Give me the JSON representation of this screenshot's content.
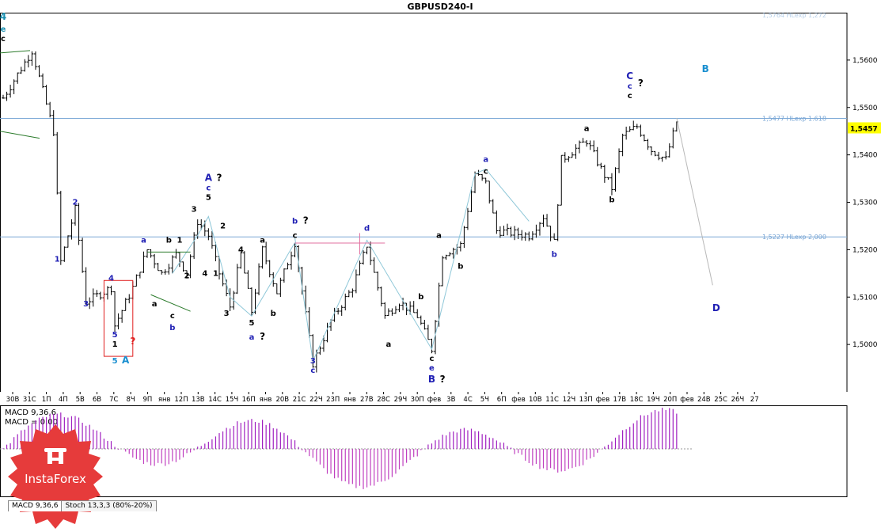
{
  "window": {
    "title": "GBPUSD240-I",
    "tabs": [
      "MACD 9,36,6",
      "Stoch 13,3,3 (80%-20%)"
    ]
  },
  "brand": {
    "name": "InstaForex",
    "color": "#e63b3b"
  },
  "colors": {
    "bull": "#ffffff",
    "bar": "#000000",
    "level_line": "#7aa7d6",
    "wave_blue": "#1f1fb4",
    "wave_cyan": "#1a8fd0",
    "wave_teal": "#1a8fb0",
    "macd_pos": "#a020c0",
    "macd_neg": "#c040c0",
    "price_tag": "#ffff00"
  },
  "chart_data": [
    {
      "type": "candlestick",
      "title": "GBPUSD240-I",
      "ylim": [
        1.49,
        1.57
      ],
      "y_ticks": [
        "1,5600",
        "1,5500",
        "1,5400",
        "1,5300",
        "1,5200",
        "1,5100",
        "1,5000"
      ],
      "y_tick_values": [
        1.56,
        1.55,
        1.54,
        1.53,
        1.52,
        1.51,
        1.5
      ],
      "current_price": {
        "value": 1.5457,
        "label": "1,5457"
      },
      "x_ticks": [
        "30В",
        "31С",
        "1П",
        "4П",
        "5В",
        "6В",
        "7С",
        "8Ч",
        "9П",
        "янв",
        "12П",
        "13В",
        "14С",
        "15Ч",
        "16П",
        "янв",
        "20В",
        "21С",
        "22Ч",
        "23П",
        "янв",
        "27В",
        "28С",
        "29Ч",
        "30П",
        "фев",
        "3В",
        "4С",
        "5Ч",
        "6П",
        "фев",
        "10В",
        "11С",
        "12Ч",
        "13П",
        "фев",
        "17В",
        "18С",
        "19Ч",
        "20П",
        "фев",
        "24В",
        "25С",
        "26Ч",
        "27"
      ],
      "levels": [
        {
          "value": 1.5764,
          "label": "1,5764 HLexp 1,272"
        },
        {
          "value": 1.5477,
          "label": "1,5477 HLexp 1.618"
        },
        {
          "value": 1.5227,
          "label": "1,5227 HLexp 2,000"
        }
      ],
      "wave_labels": [
        {
          "text": "4",
          "x": 0,
          "y": 1.5685,
          "color": "#1a8fb0"
        },
        {
          "text": "e",
          "x": 0,
          "y": 1.566,
          "color": "#1a8fb0"
        },
        {
          "text": "c",
          "x": 0,
          "y": 1.564,
          "color": "#000000"
        },
        {
          "text": "b",
          "x": -6,
          "y": 1.548,
          "color": "#1f1fb4"
        },
        {
          "text": "1",
          "x": 15,
          "y": 1.5175,
          "color": "#1f1fb4"
        },
        {
          "text": "2",
          "x": 20,
          "y": 1.5295,
          "color": "#1f1fb4"
        },
        {
          "text": "3",
          "x": 23,
          "y": 1.508,
          "color": "#1f1fb4"
        },
        {
          "text": "4",
          "x": 30,
          "y": 1.5135,
          "color": "#1f1fb4"
        },
        {
          "text": "5",
          "x": 31,
          "y": 1.5015,
          "color": "#1f1fb4"
        },
        {
          "text": "1",
          "x": 31,
          "y": 1.4995,
          "color": "#000000"
        },
        {
          "text": "?",
          "x": 36,
          "y": 1.5,
          "color": "#e02020"
        },
        {
          "text": "5",
          "x": 31,
          "y": 1.496,
          "color": "#1a8fd0"
        },
        {
          "text": "A",
          "x": 34,
          "y": 1.496,
          "color": "#1a8fd0"
        },
        {
          "text": "a",
          "x": 39,
          "y": 1.5215,
          "color": "#1f1fb4"
        },
        {
          "text": "a",
          "x": 42,
          "y": 1.508,
          "color": "#000000"
        },
        {
          "text": "b",
          "x": 46,
          "y": 1.5215,
          "color": "#000000"
        },
        {
          "text": "1",
          "x": 49,
          "y": 1.5215,
          "color": "#000000"
        },
        {
          "text": "c",
          "x": 47,
          "y": 1.5055,
          "color": "#000000"
        },
        {
          "text": "b",
          "x": 47,
          "y": 1.503,
          "color": "#1f1fb4"
        },
        {
          "text": "2",
          "x": 51,
          "y": 1.514,
          "color": "#000000"
        },
        {
          "text": "3",
          "x": 53,
          "y": 1.528,
          "color": "#000000"
        },
        {
          "text": "A",
          "x": 57,
          "y": 1.5345,
          "color": "#1f1fb4"
        },
        {
          "text": "?",
          "x": 60,
          "y": 1.5345,
          "color": "#000000"
        },
        {
          "text": "c",
          "x": 57,
          "y": 1.5325,
          "color": "#1f1fb4"
        },
        {
          "text": "5",
          "x": 57,
          "y": 1.5305,
          "color": "#000000"
        },
        {
          "text": "4",
          "x": 56,
          "y": 1.5145,
          "color": "#000000"
        },
        {
          "text": "1",
          "x": 59,
          "y": 1.5145,
          "color": "#000000"
        },
        {
          "text": "2",
          "x": 61,
          "y": 1.5245,
          "color": "#000000"
        },
        {
          "text": "4",
          "x": 66,
          "y": 1.5195,
          "color": "#000000"
        },
        {
          "text": "3",
          "x": 62,
          "y": 1.506,
          "color": "#000000"
        },
        {
          "text": "5",
          "x": 69,
          "y": 1.504,
          "color": "#000000"
        },
        {
          "text": "a",
          "x": 72,
          "y": 1.5215,
          "color": "#000000"
        },
        {
          "text": "b",
          "x": 75,
          "y": 1.506,
          "color": "#000000"
        },
        {
          "text": "a",
          "x": 69,
          "y": 1.501,
          "color": "#1f1fb4"
        },
        {
          "text": "?",
          "x": 72,
          "y": 1.501,
          "color": "#000000"
        },
        {
          "text": "b",
          "x": 81,
          "y": 1.5255,
          "color": "#1f1fb4"
        },
        {
          "text": "?",
          "x": 84,
          "y": 1.5255,
          "color": "#000000"
        },
        {
          "text": "c",
          "x": 81,
          "y": 1.5225,
          "color": "#000000"
        },
        {
          "text": "3",
          "x": 86,
          "y": 1.496,
          "color": "#1f1fb4"
        },
        {
          "text": "c",
          "x": 86,
          "y": 1.494,
          "color": "#1f1fb4"
        },
        {
          "text": "d",
          "x": 101,
          "y": 1.524,
          "color": "#1f1fb4"
        },
        {
          "text": "a",
          "x": 107,
          "y": 1.4995,
          "color": "#000000"
        },
        {
          "text": "b",
          "x": 116,
          "y": 1.5095,
          "color": "#000000"
        },
        {
          "text": "c",
          "x": 119,
          "y": 1.4965,
          "color": "#000000"
        },
        {
          "text": "e",
          "x": 119,
          "y": 1.4945,
          "color": "#1f1fb4"
        },
        {
          "text": "B",
          "x": 119,
          "y": 1.492,
          "color": "#1f1fb4"
        },
        {
          "text": "?",
          "x": 122,
          "y": 1.492,
          "color": "#000000"
        },
        {
          "text": "a",
          "x": 121,
          "y": 1.5225,
          "color": "#000000"
        },
        {
          "text": "b",
          "x": 127,
          "y": 1.516,
          "color": "#000000"
        },
        {
          "text": "a",
          "x": 134,
          "y": 1.5385,
          "color": "#1f1fb4"
        },
        {
          "text": "c",
          "x": 134,
          "y": 1.536,
          "color": "#000000"
        },
        {
          "text": "b",
          "x": 153,
          "y": 1.5185,
          "color": "#1f1fb4"
        },
        {
          "text": "a",
          "x": 162,
          "y": 1.545,
          "color": "#000000"
        },
        {
          "text": "b",
          "x": 169,
          "y": 1.53,
          "color": "#000000"
        },
        {
          "text": "C",
          "x": 174,
          "y": 1.556,
          "color": "#1f1fb4"
        },
        {
          "text": "?",
          "x": 177,
          "y": 1.5545,
          "color": "#000000"
        },
        {
          "text": "c",
          "x": 174,
          "y": 1.554,
          "color": "#1f1fb4"
        },
        {
          "text": "c",
          "x": 174,
          "y": 1.552,
          "color": "#000000"
        },
        {
          "text": "B",
          "x": 195,
          "y": 1.5575,
          "color": "#1a8fd0"
        },
        {
          "text": "D",
          "x": 198,
          "y": 1.507,
          "color": "#1f1fb4"
        }
      ],
      "projection": {
        "from": [
          187,
          1.5478
        ],
        "to": [
          197,
          1.5125
        ]
      }
    },
    {
      "type": "bar",
      "name": "MACD",
      "labels": [
        "MACD 9,36,6",
        "MACD = 0,00"
      ]
    }
  ]
}
